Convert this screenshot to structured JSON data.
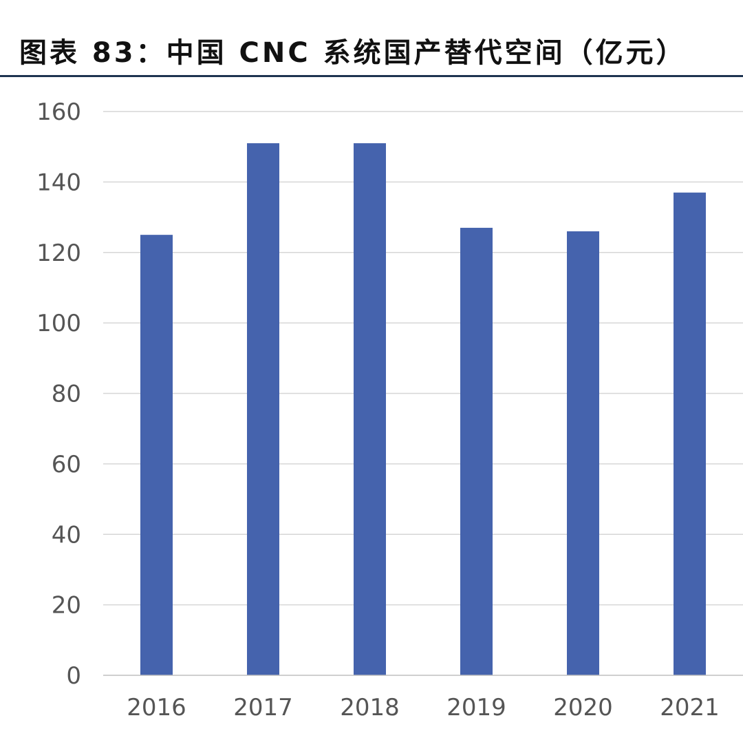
{
  "header": {
    "title": "图表 83：中国 CNC 系统国产替代空间（亿元）"
  },
  "chart_data": {
    "type": "bar",
    "title": "图表 83：中国 CNC 系统国产替代空间（亿元）",
    "categories": [
      "2016",
      "2017",
      "2018",
      "2019",
      "2020",
      "2021"
    ],
    "values": [
      125,
      151,
      151,
      127,
      126,
      137
    ],
    "ylim": [
      0,
      160
    ],
    "yticks": [
      "0",
      "20",
      "40",
      "60",
      "80",
      "100",
      "120",
      "140",
      "160"
    ],
    "xlabel": "",
    "ylabel": "",
    "grid": true,
    "legend": "none",
    "bar_color": "#4563ad"
  }
}
